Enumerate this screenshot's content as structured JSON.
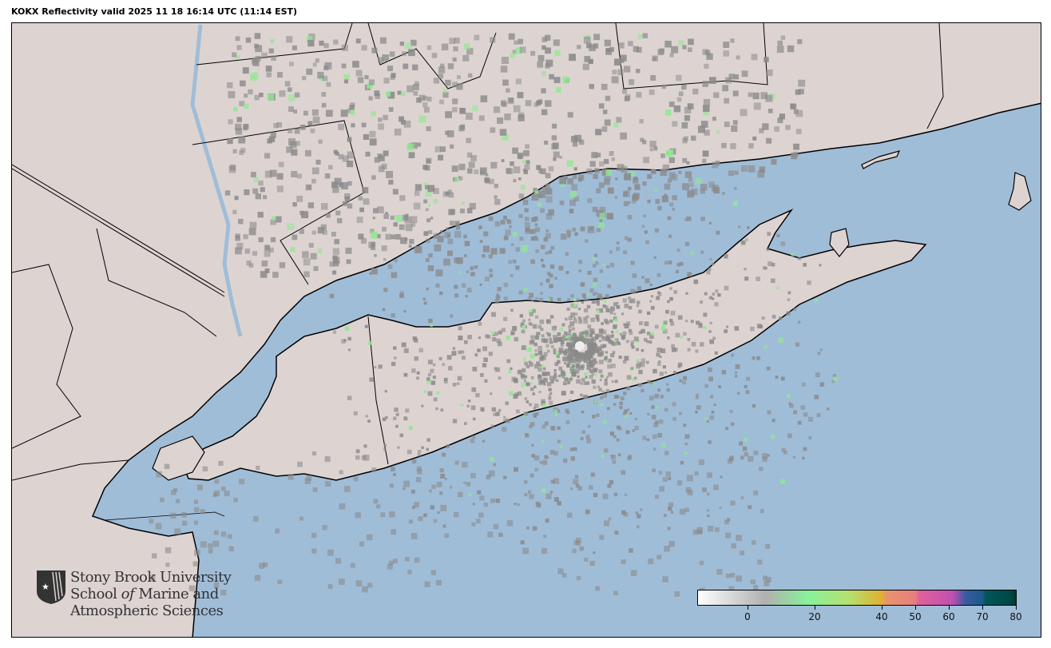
{
  "title": "KOKX Reflectivity valid 2025 11 18 16:14 UTC (11:14 EST)",
  "logo": {
    "line1": "Stony Brook University",
    "line2a": "School ",
    "line2b": "of",
    "line2c": " Marine and",
    "line3": "Atmospheric Sciences"
  },
  "colorbar": {
    "min": -15,
    "max": 80,
    "ticks": [
      0,
      20,
      40,
      50,
      60,
      70,
      80
    ],
    "stops": [
      [
        -15,
        "#ffffff"
      ],
      [
        5,
        "#b0b0b0"
      ],
      [
        18,
        "#88f29a"
      ],
      [
        30,
        "#b5e070"
      ],
      [
        40,
        "#e0b030"
      ],
      [
        41,
        "#e8956a"
      ],
      [
        50,
        "#e67e7e"
      ],
      [
        51,
        "#e0609a"
      ],
      [
        61,
        "#c050b0"
      ],
      [
        65,
        "#3a5aa0"
      ],
      [
        70,
        "#1a5a8a"
      ],
      [
        71,
        "#00565a"
      ],
      [
        78,
        "#004848"
      ],
      [
        80,
        "#003a2a"
      ]
    ]
  },
  "colors": {
    "ocean": "#a0bdd8",
    "land": "#ddd4d2",
    "border": "#000000",
    "echo_gray": "#8a8a8a",
    "echo_green": "#90e890"
  },
  "radar_site": "KOKX"
}
